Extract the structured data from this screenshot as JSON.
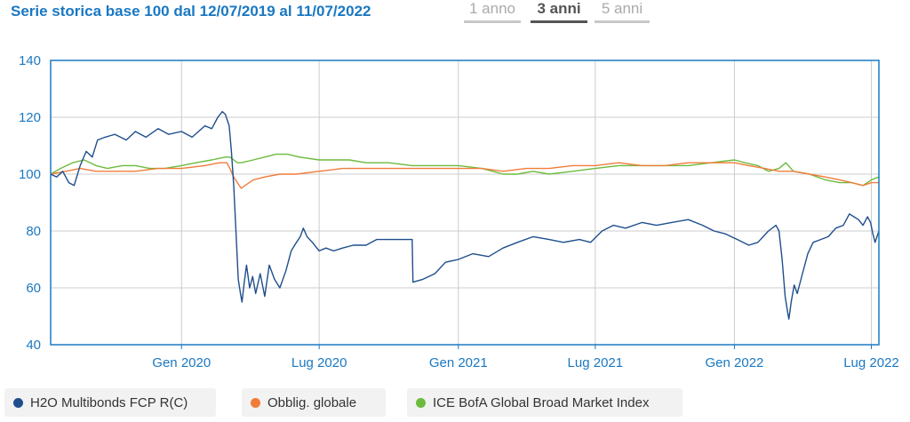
{
  "header": {
    "title": "Serie storica base 100 dal 12/07/2019 al 11/07/2022"
  },
  "tabs": [
    {
      "label": "1 anno",
      "active": false
    },
    {
      "label": "3 anni",
      "active": true
    },
    {
      "label": "5 anni",
      "active": false
    }
  ],
  "colors": {
    "accent": "#1a78c2",
    "axis": "#1a78c2",
    "grid": "#cccccc"
  },
  "chart_data": {
    "type": "line",
    "xlabel": "",
    "ylabel": "",
    "xlim": [
      "2019-07-12",
      "2022-07-11"
    ],
    "ylim": [
      40,
      140
    ],
    "yticks": [
      40,
      60,
      80,
      100,
      120,
      140
    ],
    "ytick_labels": [
      "40",
      "60",
      "80",
      "100",
      "120",
      "140"
    ],
    "xticks": [
      {
        "date": "2020-01-01",
        "label": "Gen 2020"
      },
      {
        "date": "2020-07-01",
        "label": "Lug 2020"
      },
      {
        "date": "2021-01-01",
        "label": "Gen 2021"
      },
      {
        "date": "2021-07-01",
        "label": "Lug 2021"
      },
      {
        "date": "2022-01-01",
        "label": "Gen 2022"
      },
      {
        "date": "2022-07-01",
        "label": "Lug 2022"
      }
    ],
    "grid": true,
    "legend_position": "bottom",
    "series": [
      {
        "name": "H2O Multibonds FCP R(C)",
        "color": "#1f4e8c",
        "points": [
          [
            "2019-07-12",
            100
          ],
          [
            "2019-07-20",
            99
          ],
          [
            "2019-07-28",
            101
          ],
          [
            "2019-08-05",
            97
          ],
          [
            "2019-08-12",
            96
          ],
          [
            "2019-08-20",
            103
          ],
          [
            "2019-08-28",
            108
          ],
          [
            "2019-09-05",
            106
          ],
          [
            "2019-09-12",
            112
          ],
          [
            "2019-09-22",
            113
          ],
          [
            "2019-10-05",
            114
          ],
          [
            "2019-10-20",
            112
          ],
          [
            "2019-11-01",
            115
          ],
          [
            "2019-11-15",
            113
          ],
          [
            "2019-12-01",
            116
          ],
          [
            "2019-12-15",
            114
          ],
          [
            "2020-01-01",
            115
          ],
          [
            "2020-01-15",
            113
          ],
          [
            "2020-02-01",
            117
          ],
          [
            "2020-02-10",
            116
          ],
          [
            "2020-02-18",
            120
          ],
          [
            "2020-02-24",
            122
          ],
          [
            "2020-02-28",
            121
          ],
          [
            "2020-03-04",
            117
          ],
          [
            "2020-03-07",
            108
          ],
          [
            "2020-03-10",
            96
          ],
          [
            "2020-03-13",
            80
          ],
          [
            "2020-03-16",
            63
          ],
          [
            "2020-03-19",
            58
          ],
          [
            "2020-03-21",
            55
          ],
          [
            "2020-03-24",
            62
          ],
          [
            "2020-03-27",
            68
          ],
          [
            "2020-03-31",
            60
          ],
          [
            "2020-04-04",
            64
          ],
          [
            "2020-04-08",
            58
          ],
          [
            "2020-04-14",
            65
          ],
          [
            "2020-04-20",
            57
          ],
          [
            "2020-04-26",
            68
          ],
          [
            "2020-05-03",
            63
          ],
          [
            "2020-05-10",
            60
          ],
          [
            "2020-05-18",
            66
          ],
          [
            "2020-05-25",
            73
          ],
          [
            "2020-06-01",
            76
          ],
          [
            "2020-06-06",
            78
          ],
          [
            "2020-06-10",
            81
          ],
          [
            "2020-06-15",
            78
          ],
          [
            "2020-06-22",
            76
          ],
          [
            "2020-07-01",
            73
          ],
          [
            "2020-07-10",
            74
          ],
          [
            "2020-07-20",
            73
          ],
          [
            "2020-08-01",
            74
          ],
          [
            "2020-08-15",
            75
          ],
          [
            "2020-09-01",
            75
          ],
          [
            "2020-09-15",
            77
          ],
          [
            "2020-10-01",
            77
          ],
          [
            "2020-10-20",
            77
          ],
          [
            "2020-11-01",
            77
          ],
          [
            "2020-11-02",
            62
          ],
          [
            "2020-11-15",
            63
          ],
          [
            "2020-12-01",
            65
          ],
          [
            "2020-12-15",
            69
          ],
          [
            "2021-01-01",
            70
          ],
          [
            "2021-01-20",
            72
          ],
          [
            "2021-02-10",
            71
          ],
          [
            "2021-03-01",
            74
          ],
          [
            "2021-03-20",
            76
          ],
          [
            "2021-04-10",
            78
          ],
          [
            "2021-05-01",
            77
          ],
          [
            "2021-05-20",
            76
          ],
          [
            "2021-06-10",
            77
          ],
          [
            "2021-06-25",
            76
          ],
          [
            "2021-07-10",
            80
          ],
          [
            "2021-07-25",
            82
          ],
          [
            "2021-08-10",
            81
          ],
          [
            "2021-09-01",
            83
          ],
          [
            "2021-09-20",
            82
          ],
          [
            "2021-10-10",
            83
          ],
          [
            "2021-11-01",
            84
          ],
          [
            "2021-11-20",
            82
          ],
          [
            "2021-12-05",
            80
          ],
          [
            "2021-12-20",
            79
          ],
          [
            "2022-01-05",
            77
          ],
          [
            "2022-01-20",
            75
          ],
          [
            "2022-02-01",
            76
          ],
          [
            "2022-02-15",
            80
          ],
          [
            "2022-02-25",
            82
          ],
          [
            "2022-03-01",
            80
          ],
          [
            "2022-03-05",
            70
          ],
          [
            "2022-03-09",
            57
          ],
          [
            "2022-03-12",
            52
          ],
          [
            "2022-03-14",
            49
          ],
          [
            "2022-03-17",
            55
          ],
          [
            "2022-03-21",
            61
          ],
          [
            "2022-03-25",
            58
          ],
          [
            "2022-04-01",
            65
          ],
          [
            "2022-04-08",
            72
          ],
          [
            "2022-04-15",
            76
          ],
          [
            "2022-04-25",
            77
          ],
          [
            "2022-05-05",
            78
          ],
          [
            "2022-05-15",
            81
          ],
          [
            "2022-05-25",
            82
          ],
          [
            "2022-06-02",
            86
          ],
          [
            "2022-06-08",
            85
          ],
          [
            "2022-06-14",
            84
          ],
          [
            "2022-06-20",
            82
          ],
          [
            "2022-06-26",
            85
          ],
          [
            "2022-06-30",
            83
          ],
          [
            "2022-07-03",
            79
          ],
          [
            "2022-07-06",
            76
          ],
          [
            "2022-07-11",
            80
          ]
        ]
      },
      {
        "name": "Obblig. globale",
        "color": "#f07c3a",
        "points": [
          [
            "2019-07-12",
            100
          ],
          [
            "2019-08-01",
            101
          ],
          [
            "2019-08-20",
            102
          ],
          [
            "2019-09-10",
            101
          ],
          [
            "2019-10-01",
            101
          ],
          [
            "2019-11-01",
            101
          ],
          [
            "2019-12-01",
            102
          ],
          [
            "2020-01-01",
            102
          ],
          [
            "2020-02-01",
            103
          ],
          [
            "2020-02-20",
            104
          ],
          [
            "2020-03-01",
            104
          ],
          [
            "2020-03-05",
            102
          ],
          [
            "2020-03-10",
            99
          ],
          [
            "2020-03-15",
            97
          ],
          [
            "2020-03-20",
            95
          ],
          [
            "2020-03-25",
            96
          ],
          [
            "2020-04-05",
            98
          ],
          [
            "2020-04-20",
            99
          ],
          [
            "2020-05-10",
            100
          ],
          [
            "2020-06-01",
            100
          ],
          [
            "2020-07-01",
            101
          ],
          [
            "2020-08-01",
            102
          ],
          [
            "2020-09-01",
            102
          ],
          [
            "2020-10-01",
            102
          ],
          [
            "2020-11-01",
            102
          ],
          [
            "2020-12-01",
            102
          ],
          [
            "2021-01-01",
            102
          ],
          [
            "2021-02-01",
            102
          ],
          [
            "2021-03-01",
            101
          ],
          [
            "2021-04-01",
            102
          ],
          [
            "2021-05-01",
            102
          ],
          [
            "2021-06-01",
            103
          ],
          [
            "2021-07-01",
            103
          ],
          [
            "2021-08-01",
            104
          ],
          [
            "2021-09-01",
            103
          ],
          [
            "2021-10-01",
            103
          ],
          [
            "2021-11-01",
            104
          ],
          [
            "2021-12-01",
            104
          ],
          [
            "2022-01-01",
            104
          ],
          [
            "2022-01-20",
            103
          ],
          [
            "2022-02-10",
            102
          ],
          [
            "2022-03-01",
            101
          ],
          [
            "2022-03-20",
            101
          ],
          [
            "2022-04-10",
            100
          ],
          [
            "2022-05-01",
            99
          ],
          [
            "2022-05-20",
            98
          ],
          [
            "2022-06-05",
            97
          ],
          [
            "2022-06-20",
            96
          ],
          [
            "2022-07-01",
            97
          ],
          [
            "2022-07-11",
            97
          ]
        ]
      },
      {
        "name": "ICE BofA Global Broad Market Index",
        "color": "#6cbb3c",
        "points": [
          [
            "2019-07-12",
            100
          ],
          [
            "2019-07-25",
            102
          ],
          [
            "2019-08-10",
            104
          ],
          [
            "2019-08-25",
            105
          ],
          [
            "2019-09-10",
            103
          ],
          [
            "2019-09-25",
            102
          ],
          [
            "2019-10-15",
            103
          ],
          [
            "2019-11-01",
            103
          ],
          [
            "2019-11-20",
            102
          ],
          [
            "2019-12-10",
            102
          ],
          [
            "2020-01-01",
            103
          ],
          [
            "2020-01-20",
            104
          ],
          [
            "2020-02-10",
            105
          ],
          [
            "2020-02-28",
            106
          ],
          [
            "2020-03-05",
            106
          ],
          [
            "2020-03-10",
            105
          ],
          [
            "2020-03-15",
            104
          ],
          [
            "2020-03-20",
            104
          ],
          [
            "2020-04-05",
            105
          ],
          [
            "2020-04-20",
            106
          ],
          [
            "2020-05-05",
            107
          ],
          [
            "2020-05-20",
            107
          ],
          [
            "2020-06-05",
            106
          ],
          [
            "2020-07-01",
            105
          ],
          [
            "2020-07-20",
            105
          ],
          [
            "2020-08-10",
            105
          ],
          [
            "2020-09-01",
            104
          ],
          [
            "2020-10-01",
            104
          ],
          [
            "2020-11-01",
            103
          ],
          [
            "2020-12-01",
            103
          ],
          [
            "2021-01-01",
            103
          ],
          [
            "2021-02-01",
            102
          ],
          [
            "2021-03-01",
            100
          ],
          [
            "2021-03-20",
            100
          ],
          [
            "2021-04-10",
            101
          ],
          [
            "2021-05-01",
            100
          ],
          [
            "2021-06-01",
            101
          ],
          [
            "2021-07-01",
            102
          ],
          [
            "2021-08-01",
            103
          ],
          [
            "2021-09-01",
            103
          ],
          [
            "2021-10-01",
            103
          ],
          [
            "2021-11-01",
            103
          ],
          [
            "2021-12-01",
            104
          ],
          [
            "2022-01-01",
            105
          ],
          [
            "2022-01-15",
            104
          ],
          [
            "2022-02-01",
            103
          ],
          [
            "2022-02-15",
            101
          ],
          [
            "2022-03-01",
            102
          ],
          [
            "2022-03-10",
            104
          ],
          [
            "2022-03-20",
            101
          ],
          [
            "2022-04-10",
            100
          ],
          [
            "2022-05-01",
            98
          ],
          [
            "2022-05-20",
            97
          ],
          [
            "2022-06-05",
            97
          ],
          [
            "2022-06-20",
            96
          ],
          [
            "2022-07-01",
            98
          ],
          [
            "2022-07-11",
            99
          ]
        ]
      }
    ]
  }
}
